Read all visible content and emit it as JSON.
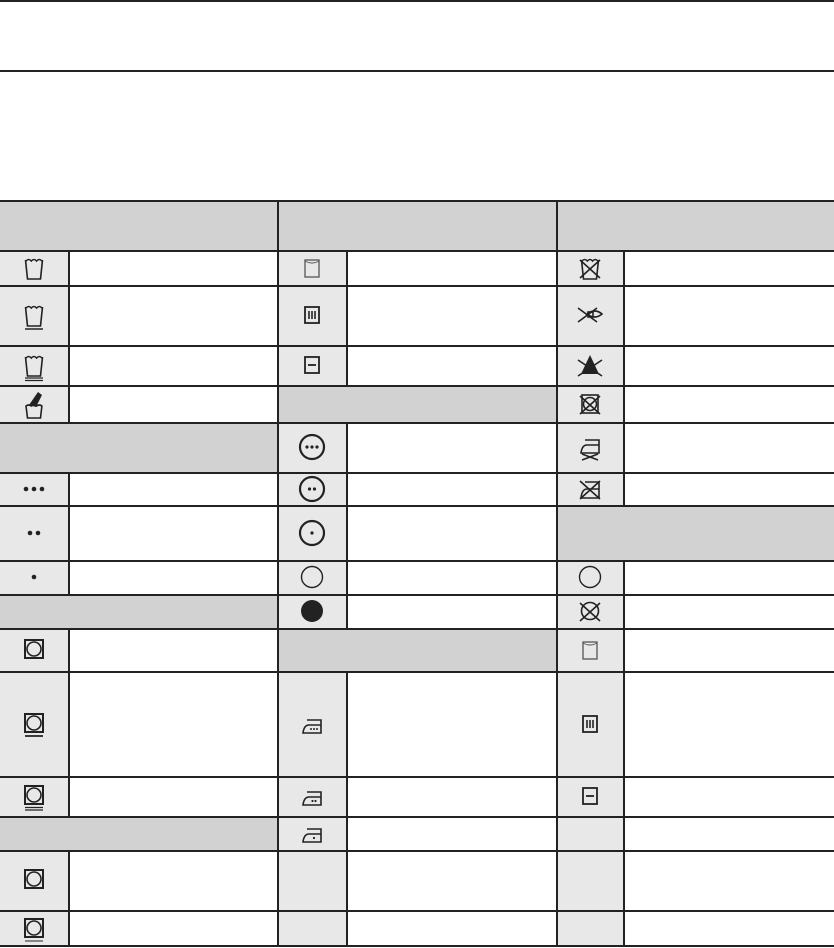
{
  "colors": {
    "rule": "#222222",
    "header_fill": "#d2d2d2",
    "icon_fill": "#e8e8e8"
  },
  "columns": [
    {
      "cells": [
        {
          "kind": "header"
        },
        {
          "kind": "symbol",
          "icon": "wash-tub-icon"
        },
        {
          "kind": "symbol",
          "icon": "wash-tub-underline-icon"
        },
        {
          "kind": "symbol",
          "icon": "wash-tub-double-underline-icon"
        },
        {
          "kind": "symbol",
          "icon": "hand-wash-icon"
        },
        {
          "kind": "header"
        },
        {
          "kind": "symbol",
          "icon": "three-dots-icon"
        },
        {
          "kind": "symbol",
          "icon": "two-dots-icon"
        },
        {
          "kind": "symbol",
          "icon": "one-dot-icon"
        },
        {
          "kind": "header"
        },
        {
          "kind": "symbol",
          "icon": "tumble-dry-icon"
        },
        {
          "kind": "symbol",
          "icon": "tumble-dry-underline-icon"
        },
        {
          "kind": "symbol",
          "icon": "tumble-dry-double-underline-icon"
        },
        {
          "kind": "header"
        },
        {
          "kind": "symbol",
          "icon": "tumble-dry-icon"
        },
        {
          "kind": "symbol",
          "icon": "tumble-dry-thin-underline-icon"
        }
      ]
    },
    {
      "cells": [
        {
          "kind": "header"
        },
        {
          "kind": "symbol",
          "icon": "drip-dry-square-icon"
        },
        {
          "kind": "symbol",
          "icon": "square-three-lines-icon"
        },
        {
          "kind": "symbol",
          "icon": "square-flat-line-icon"
        },
        {
          "kind": "header"
        },
        {
          "kind": "symbol",
          "icon": "circle-three-dots-icon"
        },
        {
          "kind": "symbol",
          "icon": "circle-two-dots-icon"
        },
        {
          "kind": "symbol",
          "icon": "circle-one-dot-icon"
        },
        {
          "kind": "symbol",
          "icon": "circle-empty-icon"
        },
        {
          "kind": "symbol",
          "icon": "circle-filled-icon"
        },
        {
          "kind": "header"
        },
        {
          "kind": "symbol",
          "icon": "iron-three-dots-icon"
        },
        {
          "kind": "symbol",
          "icon": "iron-two-dots-icon"
        },
        {
          "kind": "symbol",
          "icon": "iron-one-dot-icon"
        },
        {
          "kind": "symbol",
          "icon": ""
        },
        {
          "kind": "symbol",
          "icon": ""
        }
      ]
    },
    {
      "cells": [
        {
          "kind": "header"
        },
        {
          "kind": "symbol",
          "icon": "do-not-wash-icon"
        },
        {
          "kind": "symbol",
          "icon": "do-not-wring-icon"
        },
        {
          "kind": "symbol",
          "icon": "do-not-bleach-icon"
        },
        {
          "kind": "symbol",
          "icon": "do-not-tumble-dry-icon"
        },
        {
          "kind": "symbol",
          "icon": "no-steam-iron-icon"
        },
        {
          "kind": "symbol",
          "icon": "do-not-iron-icon"
        },
        {
          "kind": "header"
        },
        {
          "kind": "symbol",
          "icon": "circle-empty-icon"
        },
        {
          "kind": "symbol",
          "icon": "do-not-dry-clean-icon"
        },
        {
          "kind": "symbol",
          "icon": "drip-dry-square-icon"
        },
        {
          "kind": "symbol",
          "icon": "square-three-lines-icon"
        },
        {
          "kind": "symbol",
          "icon": "square-flat-line-icon"
        },
        {
          "kind": "symbol",
          "icon": ""
        },
        {
          "kind": "symbol",
          "icon": ""
        },
        {
          "kind": "symbol",
          "icon": ""
        }
      ]
    }
  ]
}
